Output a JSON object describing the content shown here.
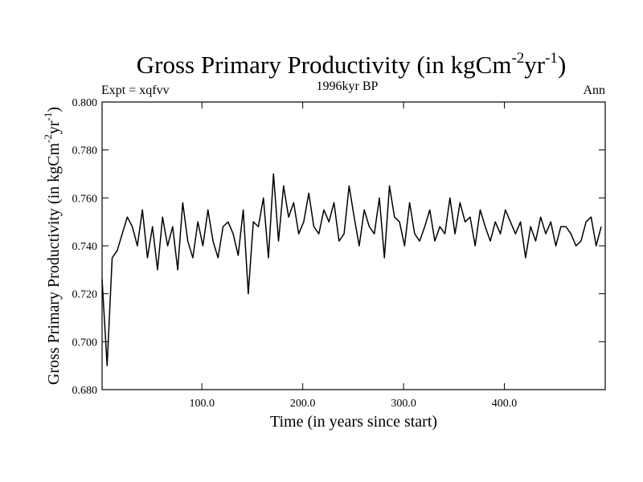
{
  "chart_data": {
    "type": "line",
    "title": {
      "main": "Gross Primary Productivity (in kgCm",
      "exp1": "-2",
      "mid": "yr",
      "exp2": "-1",
      "end": ")"
    },
    "subtitle_left": "Expt = xqfvv",
    "subtitle_center": "1996kyr BP",
    "subtitle_right": "Ann",
    "xlabel": "Time (in years since start)",
    "ylabel": {
      "main": "Gross Primary Productivity (in kgCm",
      "exp1": "-2",
      "mid": "yr",
      "exp2": "-1",
      "end": ")"
    },
    "xlim": [
      1,
      500
    ],
    "ylim": [
      0.68,
      0.8
    ],
    "x_ticks": [
      100,
      200,
      300,
      400
    ],
    "x_tick_labels": [
      "100.0",
      "200.0",
      "300.0",
      "400.0"
    ],
    "y_ticks": [
      0.68,
      0.7,
      0.72,
      0.74,
      0.76,
      0.78,
      0.8
    ],
    "y_tick_labels": [
      "0.680",
      "0.700",
      "0.720",
      "0.740",
      "0.760",
      "0.780",
      "0.800"
    ],
    "series": [
      {
        "name": "Ann",
        "x_start": 1,
        "x_step": 5,
        "values": [
          0.726,
          0.69,
          0.735,
          0.738,
          0.745,
          0.752,
          0.748,
          0.74,
          0.755,
          0.735,
          0.748,
          0.73,
          0.752,
          0.74,
          0.748,
          0.73,
          0.758,
          0.742,
          0.735,
          0.75,
          0.74,
          0.755,
          0.742,
          0.735,
          0.748,
          0.75,
          0.745,
          0.736,
          0.755,
          0.72,
          0.75,
          0.748,
          0.76,
          0.735,
          0.77,
          0.742,
          0.765,
          0.752,
          0.758,
          0.745,
          0.75,
          0.762,
          0.748,
          0.745,
          0.755,
          0.75,
          0.758,
          0.742,
          0.745,
          0.765,
          0.752,
          0.74,
          0.755,
          0.748,
          0.745,
          0.76,
          0.735,
          0.765,
          0.752,
          0.75,
          0.74,
          0.758,
          0.745,
          0.742,
          0.748,
          0.755,
          0.742,
          0.748,
          0.745,
          0.76,
          0.745,
          0.758,
          0.75,
          0.752,
          0.74,
          0.755,
          0.748,
          0.742,
          0.75,
          0.745,
          0.755,
          0.75,
          0.745,
          0.75,
          0.735,
          0.748,
          0.742,
          0.752,
          0.745,
          0.75,
          0.74,
          0.748,
          0.748,
          0.745,
          0.74,
          0.742,
          0.75,
          0.752,
          0.74,
          0.748
        ]
      }
    ]
  }
}
